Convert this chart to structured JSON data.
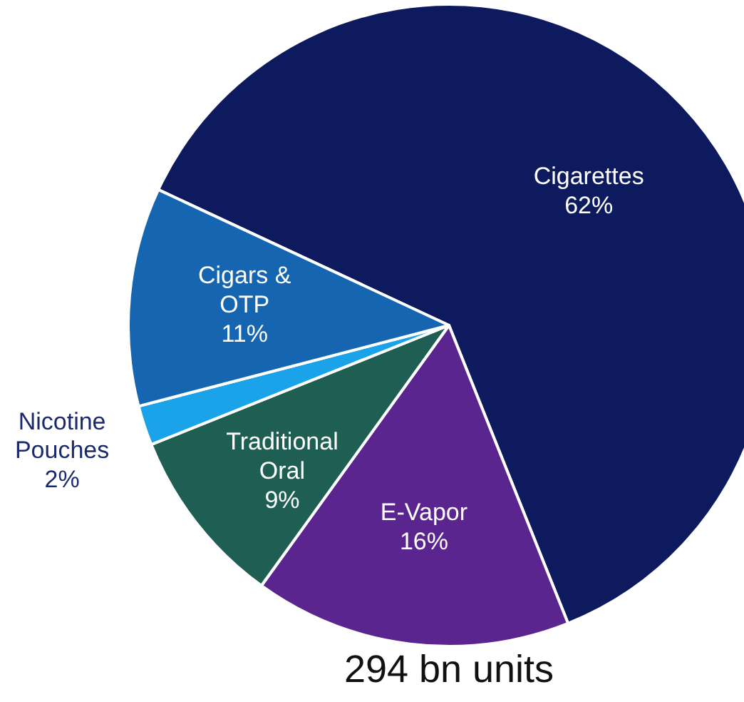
{
  "chart_data": {
    "type": "pie",
    "categories": [
      "Cigarettes",
      "E-Vapor",
      "Traditional Oral",
      "Nicotine Pouches",
      "Cigars & OTP"
    ],
    "values": [
      62,
      16,
      9,
      2,
      11
    ],
    "value_labels": [
      "62%",
      "16%",
      "9%",
      "2%",
      "11%"
    ],
    "colors": [
      "#0d1a5e",
      "#5b2590",
      "#1f5e52",
      "#1aa3e8",
      "#1565b0"
    ],
    "annotations": [
      "294 bn units"
    ]
  }
}
